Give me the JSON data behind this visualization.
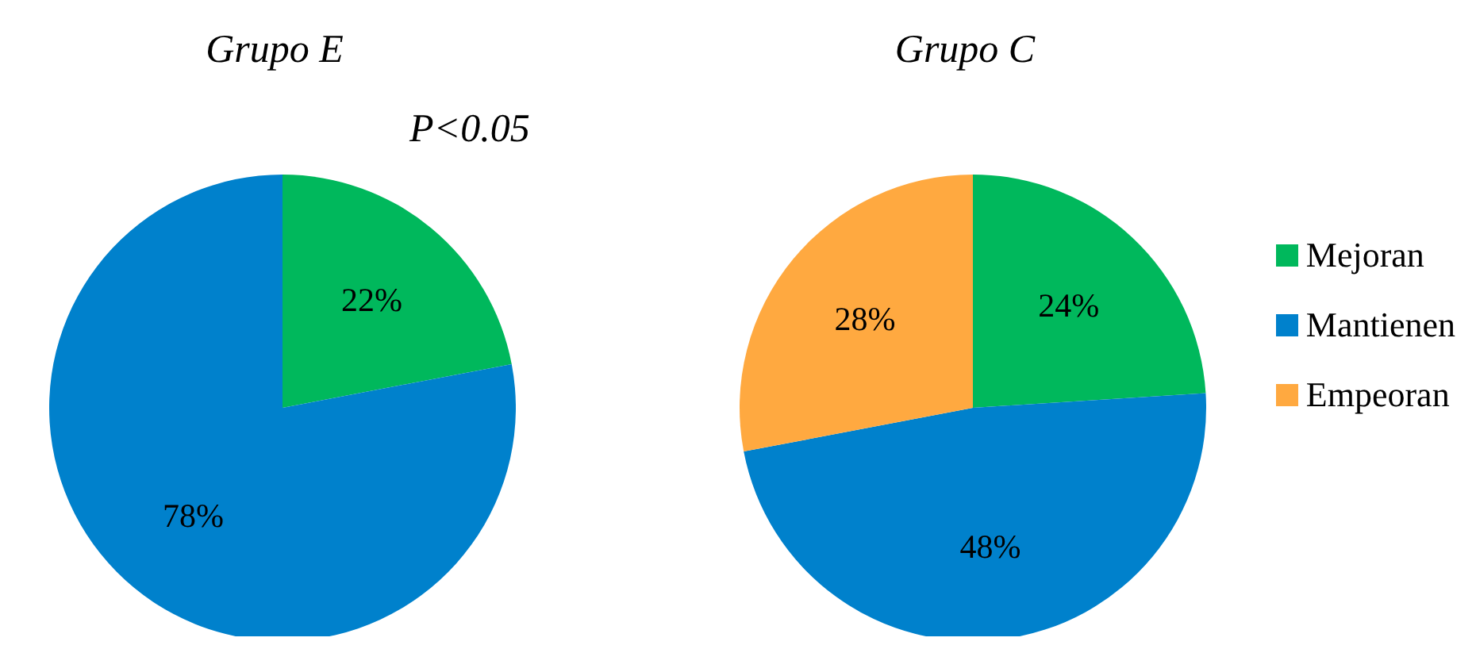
{
  "chart_data": [
    {
      "type": "pie",
      "title": "Grupo E",
      "categories": [
        null,
        null
      ],
      "values": [
        22,
        78
      ],
      "colors": [
        "#00b85c",
        "#0081cc"
      ],
      "value_labels": [
        "22%",
        "78%"
      ],
      "annotations": [
        "P<0.05"
      ],
      "legend": false
    },
    {
      "type": "pie",
      "title": "Grupo C",
      "categories": [
        "Mejoran",
        "Mantienen",
        "Empeoran"
      ],
      "values": [
        24,
        48,
        28
      ],
      "colors": [
        "#00b85c",
        "#0081cc",
        "#ffa940"
      ],
      "value_labels": [
        "24%",
        "48%",
        "28%"
      ],
      "legend": "right"
    }
  ]
}
